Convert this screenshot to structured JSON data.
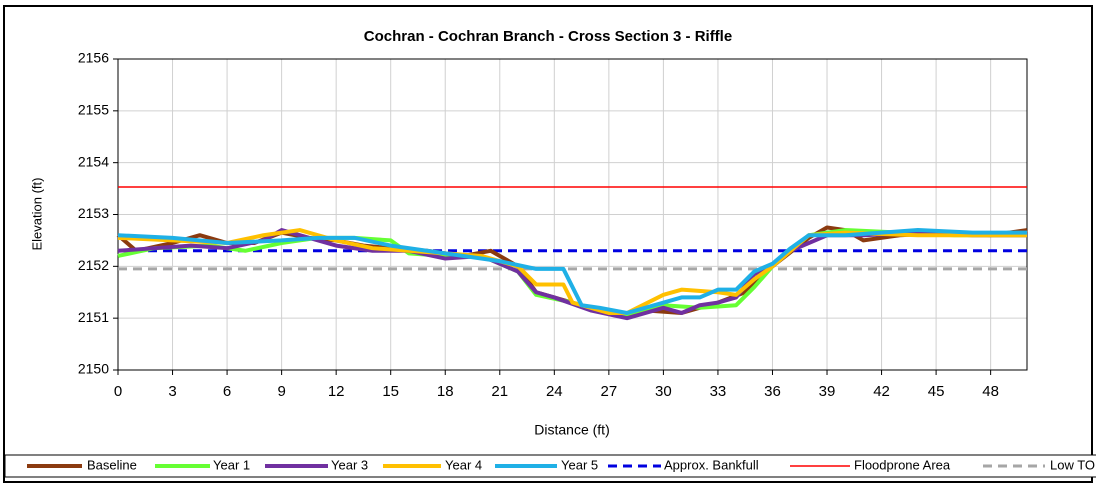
{
  "chart_data": {
    "type": "line",
    "title": "Cochran - Cochran Branch - Cross Section 3 - Riffle",
    "x_label": "Distance (ft)",
    "y_label": "Elevation (ft)",
    "xlim": [
      0,
      50
    ],
    "ylim": [
      2150,
      2156
    ],
    "xticks": [
      0,
      3,
      6,
      9,
      12,
      15,
      18,
      21,
      24,
      27,
      30,
      33,
      36,
      39,
      42,
      45,
      48
    ],
    "yticks": [
      2150,
      2151,
      2152,
      2153,
      2154,
      2155,
      2156
    ],
    "grid": true,
    "legend": "bottom",
    "series": [
      {
        "name": "Baseline",
        "color": "#8b3a0f",
        "width": 4,
        "dash": "solid",
        "x": [
          0,
          1,
          3,
          4.5,
          6,
          7.5,
          9,
          10.5,
          12,
          13.5,
          15,
          17,
          19,
          20.5,
          22,
          23,
          25,
          27,
          28,
          29,
          31,
          33,
          34.5,
          36,
          38,
          39,
          40,
          41,
          43,
          46,
          48,
          50
        ],
        "values": [
          2152.6,
          2152.3,
          2152.45,
          2152.6,
          2152.45,
          2152.45,
          2152.65,
          2152.55,
          2152.5,
          2152.4,
          2152.35,
          2152.3,
          2152.2,
          2152.3,
          2152.0,
          2151.5,
          2151.3,
          2151.1,
          2151.05,
          2151.15,
          2151.1,
          2151.3,
          2151.5,
          2152.0,
          2152.55,
          2152.75,
          2152.7,
          2152.5,
          2152.6,
          2152.65,
          2152.6,
          2152.7
        ]
      },
      {
        "name": "Year 1",
        "color": "#66ff33",
        "width": 4,
        "dash": "solid",
        "x": [
          0,
          2,
          5,
          7,
          9,
          11,
          13,
          15,
          16,
          18,
          20,
          22,
          23,
          25,
          27,
          28,
          30,
          32,
          34,
          35,
          36,
          38,
          40,
          43,
          46,
          50
        ],
        "values": [
          2152.2,
          2152.35,
          2152.4,
          2152.3,
          2152.45,
          2152.55,
          2152.55,
          2152.5,
          2152.25,
          2152.2,
          2152.2,
          2151.9,
          2151.45,
          2151.3,
          2151.1,
          2151.05,
          2151.25,
          2151.2,
          2151.25,
          2151.6,
          2152.0,
          2152.6,
          2152.7,
          2152.65,
          2152.6,
          2152.6
        ]
      },
      {
        "name": "Year 3",
        "color": "#7030a0",
        "width": 4,
        "dash": "solid",
        "x": [
          0,
          2,
          4,
          6,
          8,
          9,
          10,
          12,
          14,
          16,
          18,
          20,
          22,
          23,
          24,
          26,
          28,
          30,
          31,
          32,
          33,
          34,
          35,
          36,
          37,
          39,
          41,
          44,
          47,
          50
        ],
        "values": [
          2152.3,
          2152.35,
          2152.4,
          2152.35,
          2152.5,
          2152.7,
          2152.6,
          2152.4,
          2152.3,
          2152.3,
          2152.15,
          2152.2,
          2151.9,
          2151.5,
          2151.4,
          2151.15,
          2151.0,
          2151.2,
          2151.1,
          2151.25,
          2151.3,
          2151.4,
          2151.85,
          2152.0,
          2152.3,
          2152.6,
          2152.6,
          2152.65,
          2152.6,
          2152.6
        ]
      },
      {
        "name": "Year 4",
        "color": "#ffc000",
        "width": 4,
        "dash": "solid",
        "x": [
          0,
          3,
          6,
          8,
          10,
          12,
          14,
          16,
          18,
          20,
          22,
          23,
          24.5,
          25,
          27,
          28,
          30,
          31,
          33,
          34,
          35,
          36,
          38,
          40,
          44,
          50
        ],
        "values": [
          2152.55,
          2152.5,
          2152.45,
          2152.6,
          2152.7,
          2152.5,
          2152.35,
          2152.3,
          2152.25,
          2152.2,
          2152.0,
          2151.65,
          2151.65,
          2151.3,
          2151.1,
          2151.1,
          2151.45,
          2151.55,
          2151.5,
          2151.45,
          2151.75,
          2152.0,
          2152.6,
          2152.65,
          2152.6,
          2152.6
        ]
      },
      {
        "name": "Year 5",
        "color": "#1fb0e6",
        "width": 4,
        "dash": "solid",
        "x": [
          0,
          3,
          6,
          9,
          11,
          13,
          15,
          18,
          21,
          23,
          24.5,
          25.5,
          26.5,
          28,
          29,
          31,
          32,
          33,
          34,
          35,
          36,
          37,
          38,
          40,
          44,
          47,
          50
        ],
        "values": [
          2152.6,
          2152.55,
          2152.45,
          2152.5,
          2152.55,
          2152.55,
          2152.4,
          2152.25,
          2152.1,
          2151.95,
          2151.95,
          2151.25,
          2151.2,
          2151.1,
          2151.2,
          2151.4,
          2151.4,
          2151.55,
          2151.55,
          2151.9,
          2152.05,
          2152.35,
          2152.6,
          2152.6,
          2152.7,
          2152.65,
          2152.65
        ]
      },
      {
        "name": "Approx. Bankfull",
        "color": "#0000e0",
        "width": 3,
        "dash": "dash",
        "x": [
          0,
          50
        ],
        "values": [
          2152.3,
          2152.3
        ]
      },
      {
        "name": "Floodprone Area",
        "color": "#ff0000",
        "width": 1.5,
        "dash": "solid",
        "x": [
          0,
          50
        ],
        "values": [
          2153.53,
          2153.53
        ]
      },
      {
        "name": "Low TOB",
        "color": "#a6a6a6",
        "width": 3,
        "dash": "dash",
        "x": [
          0,
          50
        ],
        "values": [
          2151.95,
          2151.95
        ]
      }
    ]
  }
}
